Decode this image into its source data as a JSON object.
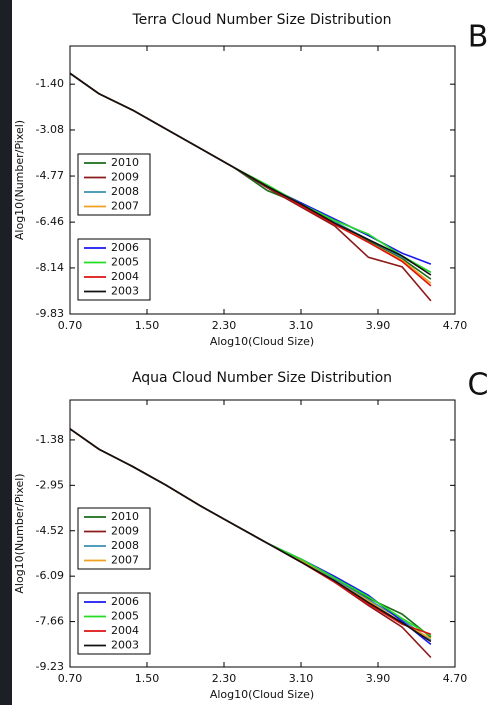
{
  "chart_data": [
    {
      "type": "line",
      "title": "Terra Cloud Number Size Distribution",
      "panel_label": "B",
      "xlabel": "Alog10(Cloud Size)",
      "ylabel": "Alog10(Number/Pixel)",
      "xlim": [
        0.7,
        4.7
      ],
      "ylim": [
        -9.83,
        0
      ],
      "xticks": [
        {
          "value": 0.7,
          "label": "0.70"
        },
        {
          "value": 1.5,
          "label": "1.50"
        },
        {
          "value": 2.3,
          "label": "2.30"
        },
        {
          "value": 3.1,
          "label": "3.10"
        },
        {
          "value": 3.9,
          "label": "3.90"
        },
        {
          "value": 4.7,
          "label": "4.70"
        }
      ],
      "yticks": [
        {
          "value": -1.4,
          "label": "-1.40"
        },
        -3.08,
        -4.77,
        -6.46,
        -8.14,
        -9.83
      ],
      "x": [
        0.7,
        1.0,
        1.35,
        1.7,
        2.05,
        2.4,
        2.75,
        3.1,
        3.45,
        3.8,
        4.15,
        4.45
      ],
      "series": [
        {
          "name": "2010",
          "color": "#1a6b1a",
          "values": [
            -1.0,
            -1.75,
            -2.35,
            -3.05,
            -3.75,
            -4.45,
            -5.3,
            -5.8,
            -6.45,
            -7.15,
            -7.8,
            -8.55
          ]
        },
        {
          "name": "2009",
          "color": "#8b1a1a",
          "values": [
            -1.0,
            -1.75,
            -2.35,
            -3.05,
            -3.75,
            -4.45,
            -5.2,
            -5.9,
            -6.6,
            -7.75,
            -8.1,
            -9.35
          ]
        },
        {
          "name": "2008",
          "color": "#3a8fb0",
          "values": [
            -1.0,
            -1.75,
            -2.35,
            -3.05,
            -3.75,
            -4.45,
            -5.15,
            -5.8,
            -6.45,
            -7.1,
            -7.75,
            -8.3
          ]
        },
        {
          "name": "2007",
          "color": "#f0a020",
          "values": [
            -1.0,
            -1.75,
            -2.35,
            -3.05,
            -3.75,
            -4.45,
            -5.15,
            -5.8,
            -6.5,
            -7.2,
            -7.85,
            -8.7
          ]
        },
        {
          "name": "2006",
          "color": "#1a1aee",
          "values": [
            -1.0,
            -1.75,
            -2.35,
            -3.05,
            -3.75,
            -4.45,
            -5.15,
            -5.75,
            -6.35,
            -6.95,
            -7.6,
            -8.0
          ]
        },
        {
          "name": "2005",
          "color": "#22dd22",
          "values": [
            -1.0,
            -1.75,
            -2.35,
            -3.05,
            -3.75,
            -4.45,
            -5.1,
            -5.8,
            -6.4,
            -6.9,
            -7.7,
            -8.3
          ]
        },
        {
          "name": "2004",
          "color": "#dd1111",
          "values": [
            -1.0,
            -1.75,
            -2.35,
            -3.05,
            -3.75,
            -4.45,
            -5.15,
            -5.85,
            -6.55,
            -7.2,
            -7.9,
            -8.8
          ]
        },
        {
          "name": "2003",
          "color": "#111111",
          "values": [
            -1.0,
            -1.75,
            -2.35,
            -3.05,
            -3.75,
            -4.45,
            -5.15,
            -5.8,
            -6.5,
            -7.1,
            -7.7,
            -8.4
          ]
        }
      ]
    },
    {
      "type": "line",
      "title": "Aqua Cloud Number Size Distribution",
      "panel_label": "C",
      "xlabel": "Alog10(Cloud Size)",
      "ylabel": "Alog10(Number/Pixel)",
      "xlim": [
        0.7,
        4.7
      ],
      "ylim": [
        -9.23,
        0
      ],
      "xticks": [
        {
          "value": 0.7,
          "label": "0.70"
        },
        {
          "value": 1.5,
          "label": "1.50"
        },
        {
          "value": 2.3,
          "label": "2.30"
        },
        {
          "value": 3.1,
          "label": "3.10"
        },
        {
          "value": 3.9,
          "label": "3.90"
        },
        {
          "value": 4.7,
          "label": "4.70"
        }
      ],
      "yticks": [
        -1.38,
        -2.95,
        -4.52,
        -6.09,
        -7.66,
        -9.23
      ],
      "x": [
        0.7,
        1.0,
        1.35,
        1.7,
        2.05,
        2.4,
        2.75,
        3.1,
        3.45,
        3.8,
        4.15,
        4.45
      ],
      "series": [
        {
          "name": "2010",
          "color": "#1a6b1a",
          "values": [
            -1.0,
            -1.7,
            -2.3,
            -2.95,
            -3.65,
            -4.3,
            -4.95,
            -5.55,
            -6.2,
            -6.85,
            -7.4,
            -8.2
          ]
        },
        {
          "name": "2009",
          "color": "#8b1a1a",
          "values": [
            -1.0,
            -1.7,
            -2.3,
            -2.95,
            -3.65,
            -4.3,
            -4.95,
            -5.6,
            -6.3,
            -7.1,
            -7.85,
            -8.9
          ]
        },
        {
          "name": "2008",
          "color": "#3a8fb0",
          "values": [
            -1.0,
            -1.7,
            -2.3,
            -2.95,
            -3.65,
            -4.3,
            -4.95,
            -5.55,
            -6.2,
            -6.9,
            -7.6,
            -8.3
          ]
        },
        {
          "name": "2007",
          "color": "#f0a020",
          "values": [
            -1.0,
            -1.7,
            -2.3,
            -2.95,
            -3.65,
            -4.3,
            -4.95,
            -5.55,
            -6.25,
            -6.95,
            -7.7,
            -8.25
          ]
        },
        {
          "name": "2006",
          "color": "#1a1aee",
          "values": [
            -1.0,
            -1.7,
            -2.3,
            -2.95,
            -3.65,
            -4.3,
            -4.95,
            -5.5,
            -6.1,
            -6.75,
            -7.65,
            -8.45
          ]
        },
        {
          "name": "2005",
          "color": "#22dd22",
          "values": [
            -1.0,
            -1.7,
            -2.3,
            -2.95,
            -3.65,
            -4.3,
            -4.95,
            -5.5,
            -6.15,
            -6.8,
            -7.55,
            -8.15
          ]
        },
        {
          "name": "2004",
          "color": "#dd1111",
          "values": [
            -1.0,
            -1.7,
            -2.3,
            -2.95,
            -3.65,
            -4.3,
            -4.95,
            -5.6,
            -6.3,
            -7.05,
            -7.75,
            -8.1
          ]
        },
        {
          "name": "2003",
          "color": "#111111",
          "values": [
            -1.0,
            -1.7,
            -2.3,
            -2.95,
            -3.65,
            -4.3,
            -4.95,
            -5.6,
            -6.25,
            -7.0,
            -7.7,
            -8.35
          ]
        }
      ]
    }
  ]
}
